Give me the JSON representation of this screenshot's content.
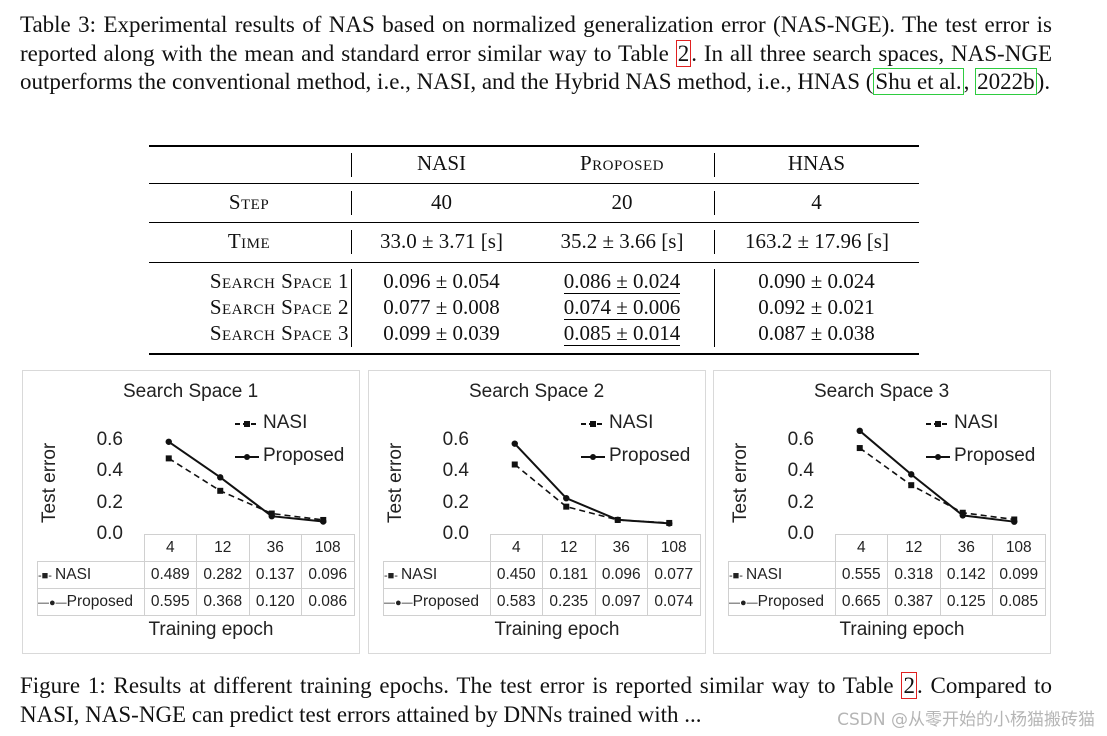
{
  "table_caption": {
    "prefix": "Table 3: Experimental results of NAS based on normalized generalization error (NAS-NGE). The test error is reported along with the mean and standard error similar way to Table ",
    "table_ref": "2",
    "middle": ". In all three search spaces, NAS-NGE outperforms the conventional method, i.e., NASI, and the Hybrid NAS method, i.e., HNAS (",
    "cite_author": "Shu et al.",
    "cite_sep": ", ",
    "cite_year": "2022b",
    "suffix": ")."
  },
  "table": {
    "columns": [
      "NASI",
      "Proposed",
      "HNAS"
    ],
    "step": {
      "label": "Step",
      "values": [
        "40",
        "20",
        "4"
      ]
    },
    "time": {
      "label": "Time",
      "values": [
        "33.0 ± 3.71 [s]",
        "35.2 ± 3.66 [s]",
        "163.2 ± 17.96 [s]"
      ]
    },
    "rows": [
      {
        "label": "Search Space 1",
        "values": [
          "0.096 ± 0.054",
          "0.086 ± 0.024",
          "0.090 ± 0.024"
        ]
      },
      {
        "label": "Search Space 2",
        "values": [
          "0.077 ± 0.008",
          "0.074 ± 0.006",
          "0.092 ± 0.021"
        ]
      },
      {
        "label": "Search Space 3",
        "values": [
          "0.099 ± 0.039",
          "0.085 ± 0.014",
          "0.087 ± 0.038"
        ]
      }
    ]
  },
  "chart_data": [
    {
      "type": "line",
      "title": "Search Space 1",
      "xlabel": "Training epoch",
      "ylabel": "Test error",
      "categories": [
        "4",
        "12",
        "36",
        "108"
      ],
      "ylim": [
        0.0,
        0.6
      ],
      "yticks": [
        "0.6",
        "0.4",
        "0.2",
        "0.0"
      ],
      "series": [
        {
          "name": "NASI",
          "style": "dashed",
          "values": [
            0.489,
            0.282,
            0.137,
            0.096
          ],
          "labels": [
            "0.489",
            "0.282",
            "0.137",
            "0.096"
          ]
        },
        {
          "name": "Proposed",
          "style": "solid",
          "values": [
            0.595,
            0.368,
            0.12,
            0.086
          ],
          "labels": [
            "0.595",
            "0.368",
            "0.120",
            "0.086"
          ]
        }
      ]
    },
    {
      "type": "line",
      "title": "Search Space 2",
      "xlabel": "Training epoch",
      "ylabel": "Test error",
      "categories": [
        "4",
        "12",
        "36",
        "108"
      ],
      "ylim": [
        0.0,
        0.6
      ],
      "yticks": [
        "0.6",
        "0.4",
        "0.2",
        "0.0"
      ],
      "series": [
        {
          "name": "NASI",
          "style": "dashed",
          "values": [
            0.45,
            0.181,
            0.096,
            0.077
          ],
          "labels": [
            "0.450",
            "0.181",
            "0.096",
            "0.077"
          ]
        },
        {
          "name": "Proposed",
          "style": "solid",
          "values": [
            0.583,
            0.235,
            0.097,
            0.074
          ],
          "labels": [
            "0.583",
            "0.235",
            "0.097",
            "0.074"
          ]
        }
      ]
    },
    {
      "type": "line",
      "title": "Search Space 3",
      "xlabel": "Training epoch",
      "ylabel": "Test error",
      "categories": [
        "4",
        "12",
        "36",
        "108"
      ],
      "ylim": [
        0.0,
        0.6
      ],
      "yticks": [
        "0.6",
        "0.4",
        "0.2",
        "0.0"
      ],
      "series": [
        {
          "name": "NASI",
          "style": "dashed",
          "values": [
            0.555,
            0.318,
            0.142,
            0.099
          ],
          "labels": [
            "0.555",
            "0.318",
            "0.142",
            "0.099"
          ]
        },
        {
          "name": "Proposed",
          "style": "solid",
          "values": [
            0.665,
            0.387,
            0.125,
            0.085
          ],
          "labels": [
            "0.665",
            "0.387",
            "0.125",
            "0.085"
          ]
        }
      ]
    }
  ],
  "figure_caption": {
    "prefix": "Figure 1: Results at different training epochs. The test error is reported similar way to Table ",
    "table_ref": "2",
    "suffix": ". Compared to NASI, NAS-NGE can predict test errors attained by DNNs trained with ..."
  },
  "watermark": "CSDN @从零开始的小杨猫搬砖猫",
  "colors": {
    "ref_green": "#2ecc40",
    "ref_red": "#e02020",
    "line": "#111111"
  }
}
